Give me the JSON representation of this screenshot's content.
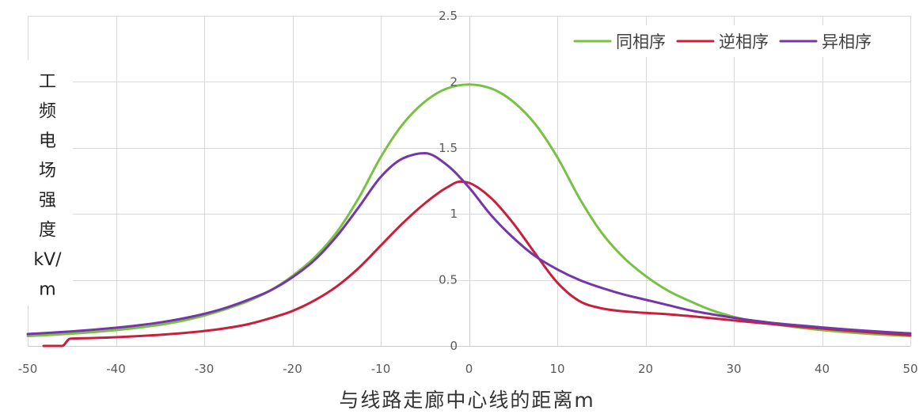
{
  "chart_data": {
    "type": "line",
    "xlabel": "与线路走廊中心线的距离m",
    "ylabel": "工频电场强度kV/m",
    "xlim": [
      -50,
      50
    ],
    "ylim": [
      0,
      2.5
    ],
    "x_tick_labels": [
      "-50",
      "-40",
      "-30",
      "-20",
      "-10",
      "0",
      "10",
      "20",
      "30",
      "40",
      "50"
    ],
    "y_tick_labels": [
      "0",
      "0.5",
      "1",
      "1.5",
      "2",
      "2.5"
    ],
    "grid": true,
    "legend": {
      "position": "top-right"
    },
    "series": [
      {
        "name": "同相序",
        "color": "#79c143",
        "points": [
          [
            -50,
            0.075
          ],
          [
            -47.5,
            0.083
          ],
          [
            -45,
            0.093
          ],
          [
            -42.5,
            0.105
          ],
          [
            -40,
            0.12
          ],
          [
            -37.5,
            0.138
          ],
          [
            -35,
            0.16
          ],
          [
            -32.5,
            0.19
          ],
          [
            -30,
            0.23
          ],
          [
            -27.5,
            0.28
          ],
          [
            -25,
            0.34
          ],
          [
            -22.5,
            0.42
          ],
          [
            -20,
            0.53
          ],
          [
            -17.5,
            0.67
          ],
          [
            -15,
            0.86
          ],
          [
            -12.5,
            1.12
          ],
          [
            -10,
            1.43
          ],
          [
            -7.5,
            1.68
          ],
          [
            -5,
            1.85
          ],
          [
            -2.5,
            1.95
          ],
          [
            0,
            1.98
          ],
          [
            2.5,
            1.95
          ],
          [
            5,
            1.85
          ],
          [
            7.5,
            1.68
          ],
          [
            10,
            1.43
          ],
          [
            12.5,
            1.12
          ],
          [
            15,
            0.86
          ],
          [
            17.5,
            0.67
          ],
          [
            20,
            0.53
          ],
          [
            22.5,
            0.42
          ],
          [
            25,
            0.34
          ],
          [
            27.5,
            0.27
          ],
          [
            30,
            0.22
          ],
          [
            32.5,
            0.185
          ],
          [
            35,
            0.16
          ],
          [
            37.5,
            0.138
          ],
          [
            40,
            0.12
          ],
          [
            42.5,
            0.105
          ],
          [
            45,
            0.093
          ],
          [
            47.5,
            0.083
          ],
          [
            50,
            0.075
          ]
        ]
      },
      {
        "name": "逆相序",
        "color": "#c8203c",
        "points": [
          [
            -48.2,
            0
          ],
          [
            -46.1,
            0
          ],
          [
            -45.2,
            0.055
          ],
          [
            -42.5,
            0.06
          ],
          [
            -40,
            0.066
          ],
          [
            -37.5,
            0.074
          ],
          [
            -35,
            0.084
          ],
          [
            -32.5,
            0.097
          ],
          [
            -30,
            0.113
          ],
          [
            -27.5,
            0.135
          ],
          [
            -25,
            0.165
          ],
          [
            -22.5,
            0.21
          ],
          [
            -20,
            0.265
          ],
          [
            -17.5,
            0.345
          ],
          [
            -15,
            0.45
          ],
          [
            -12.5,
            0.59
          ],
          [
            -10,
            0.76
          ],
          [
            -7.5,
            0.93
          ],
          [
            -5,
            1.08
          ],
          [
            -2.5,
            1.2
          ],
          [
            -1,
            1.245
          ],
          [
            0,
            1.235
          ],
          [
            1,
            1.2
          ],
          [
            2.5,
            1.12
          ],
          [
            5,
            0.93
          ],
          [
            7.5,
            0.7
          ],
          [
            10,
            0.48
          ],
          [
            12.5,
            0.34
          ],
          [
            15,
            0.285
          ],
          [
            17.5,
            0.262
          ],
          [
            20,
            0.25
          ],
          [
            22.5,
            0.24
          ],
          [
            25,
            0.226
          ],
          [
            27.5,
            0.21
          ],
          [
            30,
            0.193
          ],
          [
            32.5,
            0.177
          ],
          [
            35,
            0.161
          ],
          [
            37.5,
            0.146
          ],
          [
            40,
            0.132
          ],
          [
            42.5,
            0.118
          ],
          [
            45,
            0.105
          ],
          [
            47.5,
            0.093
          ],
          [
            50,
            0.082
          ]
        ]
      },
      {
        "name": "异相序",
        "color": "#7436a8",
        "points": [
          [
            -50,
            0.09
          ],
          [
            -47.5,
            0.1
          ],
          [
            -45,
            0.11
          ],
          [
            -42.5,
            0.123
          ],
          [
            -40,
            0.138
          ],
          [
            -37.5,
            0.156
          ],
          [
            -35,
            0.178
          ],
          [
            -32.5,
            0.207
          ],
          [
            -30,
            0.243
          ],
          [
            -27.5,
            0.29
          ],
          [
            -25,
            0.35
          ],
          [
            -22.5,
            0.42
          ],
          [
            -20,
            0.52
          ],
          [
            -17.5,
            0.65
          ],
          [
            -15,
            0.83
          ],
          [
            -12.5,
            1.05
          ],
          [
            -10,
            1.28
          ],
          [
            -7.5,
            1.42
          ],
          [
            -5,
            1.46
          ],
          [
            -2.5,
            1.37
          ],
          [
            0,
            1.2
          ],
          [
            2.5,
            0.99
          ],
          [
            5,
            0.82
          ],
          [
            7.5,
            0.68
          ],
          [
            10,
            0.58
          ],
          [
            12.5,
            0.5
          ],
          [
            15,
            0.44
          ],
          [
            17.5,
            0.39
          ],
          [
            20,
            0.35
          ],
          [
            22.5,
            0.31
          ],
          [
            25,
            0.27
          ],
          [
            27.5,
            0.24
          ],
          [
            30,
            0.213
          ],
          [
            32.5,
            0.19
          ],
          [
            35,
            0.17
          ],
          [
            37.5,
            0.155
          ],
          [
            40,
            0.14
          ],
          [
            42.5,
            0.127
          ],
          [
            45,
            0.115
          ],
          [
            47.5,
            0.104
          ],
          [
            50,
            0.095
          ]
        ]
      }
    ]
  }
}
